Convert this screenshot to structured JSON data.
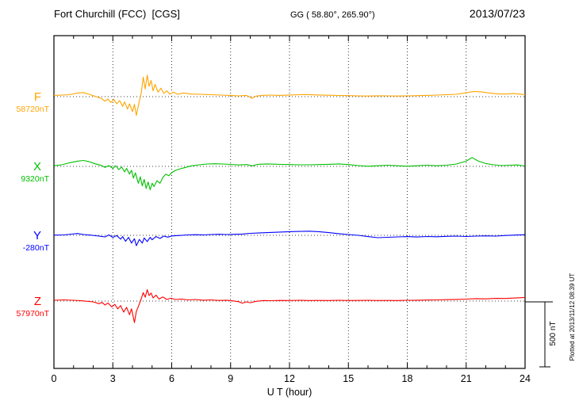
{
  "header": {
    "station": "Fort Churchill (FCC)  [CGS]",
    "coords": "GG ( 58.80°, 265.90°)",
    "date": "2013/07/23"
  },
  "footer_note": "Plotted at 2013/11/12 08:39 UT",
  "scale_bar": {
    "label": "500 nT",
    "nT": 500
  },
  "chart_data": {
    "type": "line",
    "title": "Fort Churchill (FCC)  [CGS] magnetogram 2013/07/23",
    "xlabel": "U T (hour)",
    "x_range": [
      0,
      24
    ],
    "x_ticks": [
      0,
      3,
      6,
      9,
      12,
      15,
      18,
      21,
      24
    ],
    "x_minor_tick_step": 1,
    "grid": "dotted vertical lines at 3-hour intervals; dotted horizontal baseline per trace",
    "offset_unit": "nT relative to each component baseline",
    "series": [
      {
        "name": "F",
        "base_label": "58720nT",
        "base_value_nT": 58720,
        "color": "#FFA500",
        "points": [
          [
            0,
            10
          ],
          [
            0.4,
            12
          ],
          [
            0.8,
            15
          ],
          [
            1.2,
            28
          ],
          [
            1.5,
            32
          ],
          [
            1.8,
            18
          ],
          [
            2.1,
            2
          ],
          [
            2.4,
            -12
          ],
          [
            2.6,
            -35
          ],
          [
            2.75,
            -18
          ],
          [
            2.9,
            -45
          ],
          [
            3.05,
            -22
          ],
          [
            3.2,
            -55
          ],
          [
            3.35,
            -30
          ],
          [
            3.5,
            -75
          ],
          [
            3.6,
            -40
          ],
          [
            3.75,
            -95
          ],
          [
            3.85,
            -55
          ],
          [
            4.0,
            -115
          ],
          [
            4.1,
            -60
          ],
          [
            4.2,
            -145
          ],
          [
            4.3,
            -70
          ],
          [
            4.45,
            30
          ],
          [
            4.55,
            150
          ],
          [
            4.65,
            60
          ],
          [
            4.75,
            165
          ],
          [
            4.85,
            80
          ],
          [
            4.95,
            125
          ],
          [
            5.05,
            45
          ],
          [
            5.15,
            95
          ],
          [
            5.3,
            35
          ],
          [
            5.45,
            65
          ],
          [
            5.6,
            25
          ],
          [
            5.75,
            45
          ],
          [
            5.9,
            20
          ],
          [
            6.1,
            35
          ],
          [
            6.3,
            18
          ],
          [
            6.6,
            28
          ],
          [
            7.0,
            20
          ],
          [
            7.5,
            18
          ],
          [
            8.0,
            15
          ],
          [
            8.5,
            12
          ],
          [
            9.0,
            10
          ],
          [
            9.4,
            6
          ],
          [
            9.8,
            10
          ],
          [
            10.1,
            -12
          ],
          [
            10.3,
            4
          ],
          [
            10.6,
            10
          ],
          [
            11.0,
            12
          ],
          [
            11.5,
            10
          ],
          [
            12.0,
            13
          ],
          [
            12.5,
            15
          ],
          [
            13.0,
            16
          ],
          [
            13.5,
            13
          ],
          [
            14.0,
            11
          ],
          [
            14.5,
            9
          ],
          [
            15.0,
            8
          ],
          [
            15.5,
            6
          ],
          [
            16.0,
            5
          ],
          [
            16.5,
            7
          ],
          [
            17.0,
            6
          ],
          [
            17.5,
            5
          ],
          [
            18.0,
            6
          ],
          [
            18.5,
            8
          ],
          [
            19.0,
            10
          ],
          [
            19.5,
            12
          ],
          [
            20.0,
            15
          ],
          [
            20.5,
            18
          ],
          [
            21.0,
            30
          ],
          [
            21.4,
            40
          ],
          [
            21.8,
            36
          ],
          [
            22.2,
            28
          ],
          [
            22.6,
            22
          ],
          [
            23.0,
            20
          ],
          [
            23.4,
            24
          ],
          [
            23.7,
            20
          ],
          [
            24,
            16
          ]
        ]
      },
      {
        "name": "X",
        "base_label": "9320nT",
        "base_value_nT": 9320,
        "color": "#00C000",
        "points": [
          [
            0,
            5
          ],
          [
            0.4,
            12
          ],
          [
            0.8,
            28
          ],
          [
            1.2,
            40
          ],
          [
            1.5,
            46
          ],
          [
            1.8,
            36
          ],
          [
            2.1,
            20
          ],
          [
            2.4,
            8
          ],
          [
            2.6,
            -8
          ],
          [
            2.8,
            6
          ],
          [
            3.0,
            -15
          ],
          [
            3.15,
            5
          ],
          [
            3.3,
            -25
          ],
          [
            3.45,
            -5
          ],
          [
            3.6,
            -42
          ],
          [
            3.7,
            -15
          ],
          [
            3.85,
            -60
          ],
          [
            3.95,
            -30
          ],
          [
            4.05,
            -90
          ],
          [
            4.15,
            -50
          ],
          [
            4.3,
            -130
          ],
          [
            4.4,
            -80
          ],
          [
            4.5,
            -150
          ],
          [
            4.6,
            -100
          ],
          [
            4.7,
            -170
          ],
          [
            4.8,
            -120
          ],
          [
            4.9,
            -180
          ],
          [
            5.0,
            -130
          ],
          [
            5.1,
            -155
          ],
          [
            5.25,
            -110
          ],
          [
            5.4,
            -130
          ],
          [
            5.55,
            -85
          ],
          [
            5.7,
            -60
          ],
          [
            5.85,
            -72
          ],
          [
            6.0,
            -48
          ],
          [
            6.2,
            -30
          ],
          [
            6.45,
            -18
          ],
          [
            6.7,
            -8
          ],
          [
            7.0,
            4
          ],
          [
            7.4,
            12
          ],
          [
            7.8,
            18
          ],
          [
            8.2,
            20
          ],
          [
            8.6,
            18
          ],
          [
            9.0,
            15
          ],
          [
            9.4,
            11
          ],
          [
            9.8,
            14
          ],
          [
            10.1,
            4
          ],
          [
            10.4,
            16
          ],
          [
            10.8,
            19
          ],
          [
            11.2,
            17
          ],
          [
            11.6,
            15
          ],
          [
            12.0,
            14
          ],
          [
            12.5,
            12
          ],
          [
            13.0,
            12
          ],
          [
            13.5,
            14
          ],
          [
            14.0,
            16
          ],
          [
            14.5,
            19
          ],
          [
            15.0,
            14
          ],
          [
            15.5,
            6
          ],
          [
            16.0,
            1
          ],
          [
            16.5,
            5
          ],
          [
            17.0,
            9
          ],
          [
            17.5,
            5
          ],
          [
            18.0,
            1
          ],
          [
            18.5,
            5
          ],
          [
            19.0,
            9
          ],
          [
            19.5,
            5
          ],
          [
            20.0,
            9
          ],
          [
            20.5,
            18
          ],
          [
            21.0,
            40
          ],
          [
            21.3,
            68
          ],
          [
            21.6,
            42
          ],
          [
            22.0,
            22
          ],
          [
            22.4,
            12
          ],
          [
            22.8,
            6
          ],
          [
            23.2,
            9
          ],
          [
            23.6,
            11
          ],
          [
            24,
            3
          ]
        ]
      },
      {
        "name": "Y",
        "base_label": "-280nT",
        "base_value_nT": -280,
        "color": "#0000FF",
        "points": [
          [
            0,
            1
          ],
          [
            0.5,
            3
          ],
          [
            0.9,
            9
          ],
          [
            1.2,
            14
          ],
          [
            1.5,
            6
          ],
          [
            1.9,
            1
          ],
          [
            2.3,
            -6
          ],
          [
            2.6,
            -12
          ],
          [
            2.8,
            3
          ],
          [
            3.0,
            -16
          ],
          [
            3.2,
            -2
          ],
          [
            3.4,
            -30
          ],
          [
            3.5,
            -10
          ],
          [
            3.65,
            -46
          ],
          [
            3.8,
            -16
          ],
          [
            3.95,
            -60
          ],
          [
            4.1,
            -26
          ],
          [
            4.2,
            -80
          ],
          [
            4.35,
            -32
          ],
          [
            4.5,
            -60
          ],
          [
            4.6,
            -20
          ],
          [
            4.75,
            -48
          ],
          [
            4.9,
            -16
          ],
          [
            5.0,
            -34
          ],
          [
            5.2,
            -10
          ],
          [
            5.4,
            -24
          ],
          [
            5.6,
            -6
          ],
          [
            5.8,
            -14
          ],
          [
            6.0,
            -5
          ],
          [
            6.4,
            -1
          ],
          [
            6.8,
            3
          ],
          [
            7.2,
            5
          ],
          [
            7.6,
            3
          ],
          [
            8.0,
            6
          ],
          [
            8.4,
            8
          ],
          [
            8.8,
            6
          ],
          [
            9.2,
            8
          ],
          [
            9.6,
            10
          ],
          [
            10.0,
            15
          ],
          [
            10.5,
            19
          ],
          [
            11.0,
            22
          ],
          [
            11.5,
            25
          ],
          [
            12.0,
            28
          ],
          [
            12.5,
            30
          ],
          [
            13.0,
            32
          ],
          [
            13.5,
            28
          ],
          [
            14.0,
            21
          ],
          [
            14.5,
            13
          ],
          [
            15.0,
            6
          ],
          [
            15.5,
            0
          ],
          [
            16.0,
            -10
          ],
          [
            16.5,
            -18
          ],
          [
            17.0,
            -15
          ],
          [
            17.5,
            -12
          ],
          [
            18.0,
            -10
          ],
          [
            18.5,
            -13
          ],
          [
            19.0,
            -9
          ],
          [
            19.5,
            -11
          ],
          [
            20.0,
            -8
          ],
          [
            20.5,
            -6
          ],
          [
            21.0,
            -9
          ],
          [
            21.5,
            -6
          ],
          [
            22.0,
            -4
          ],
          [
            22.5,
            -6
          ],
          [
            23.0,
            -1
          ],
          [
            23.5,
            2
          ],
          [
            24,
            5
          ]
        ]
      },
      {
        "name": "Z",
        "base_label": "57970nT",
        "base_value_nT": 57970,
        "color": "#FF0000",
        "points": [
          [
            0,
            6
          ],
          [
            0.5,
            9
          ],
          [
            1.0,
            6
          ],
          [
            1.5,
            1
          ],
          [
            2.0,
            -6
          ],
          [
            2.3,
            -20
          ],
          [
            2.45,
            -10
          ],
          [
            2.6,
            -30
          ],
          [
            2.75,
            -15
          ],
          [
            2.95,
            -45
          ],
          [
            3.1,
            -25
          ],
          [
            3.25,
            -60
          ],
          [
            3.4,
            -35
          ],
          [
            3.55,
            -85
          ],
          [
            3.7,
            -48
          ],
          [
            3.85,
            -105
          ],
          [
            3.95,
            -60
          ],
          [
            4.1,
            -165
          ],
          [
            4.2,
            -80
          ],
          [
            4.3,
            -42
          ],
          [
            4.45,
            18
          ],
          [
            4.55,
            65
          ],
          [
            4.65,
            30
          ],
          [
            4.75,
            88
          ],
          [
            4.85,
            42
          ],
          [
            4.95,
            62
          ],
          [
            5.05,
            24
          ],
          [
            5.2,
            46
          ],
          [
            5.35,
            16
          ],
          [
            5.55,
            32
          ],
          [
            5.75,
            12
          ],
          [
            5.95,
            22
          ],
          [
            6.2,
            12
          ],
          [
            6.5,
            16
          ],
          [
            6.8,
            9
          ],
          [
            7.2,
            12
          ],
          [
            7.6,
            7
          ],
          [
            8.0,
            9
          ],
          [
            8.4,
            5
          ],
          [
            8.8,
            7
          ],
          [
            9.1,
            2
          ],
          [
            9.4,
            -4
          ],
          [
            9.6,
            -16
          ],
          [
            9.8,
            -6
          ],
          [
            10.0,
            -13
          ],
          [
            10.3,
            -2
          ],
          [
            10.7,
            4
          ],
          [
            11.0,
            3
          ],
          [
            11.5,
            5
          ],
          [
            12.0,
            4
          ],
          [
            12.5,
            6
          ],
          [
            13.0,
            4
          ],
          [
            13.5,
            5
          ],
          [
            14.0,
            4
          ],
          [
            14.5,
            6
          ],
          [
            15.0,
            4
          ],
          [
            15.5,
            5
          ],
          [
            16.0,
            6
          ],
          [
            16.5,
            4
          ],
          [
            17.0,
            5
          ],
          [
            17.5,
            4
          ],
          [
            18.0,
            6
          ],
          [
            18.5,
            7
          ],
          [
            19.0,
            8
          ],
          [
            19.5,
            9
          ],
          [
            20.0,
            11
          ],
          [
            20.5,
            13
          ],
          [
            21.0,
            15
          ],
          [
            21.5,
            19
          ],
          [
            22.0,
            17
          ],
          [
            22.5,
            21
          ],
          [
            23.0,
            20
          ],
          [
            23.5,
            24
          ],
          [
            24,
            28
          ]
        ]
      }
    ]
  }
}
